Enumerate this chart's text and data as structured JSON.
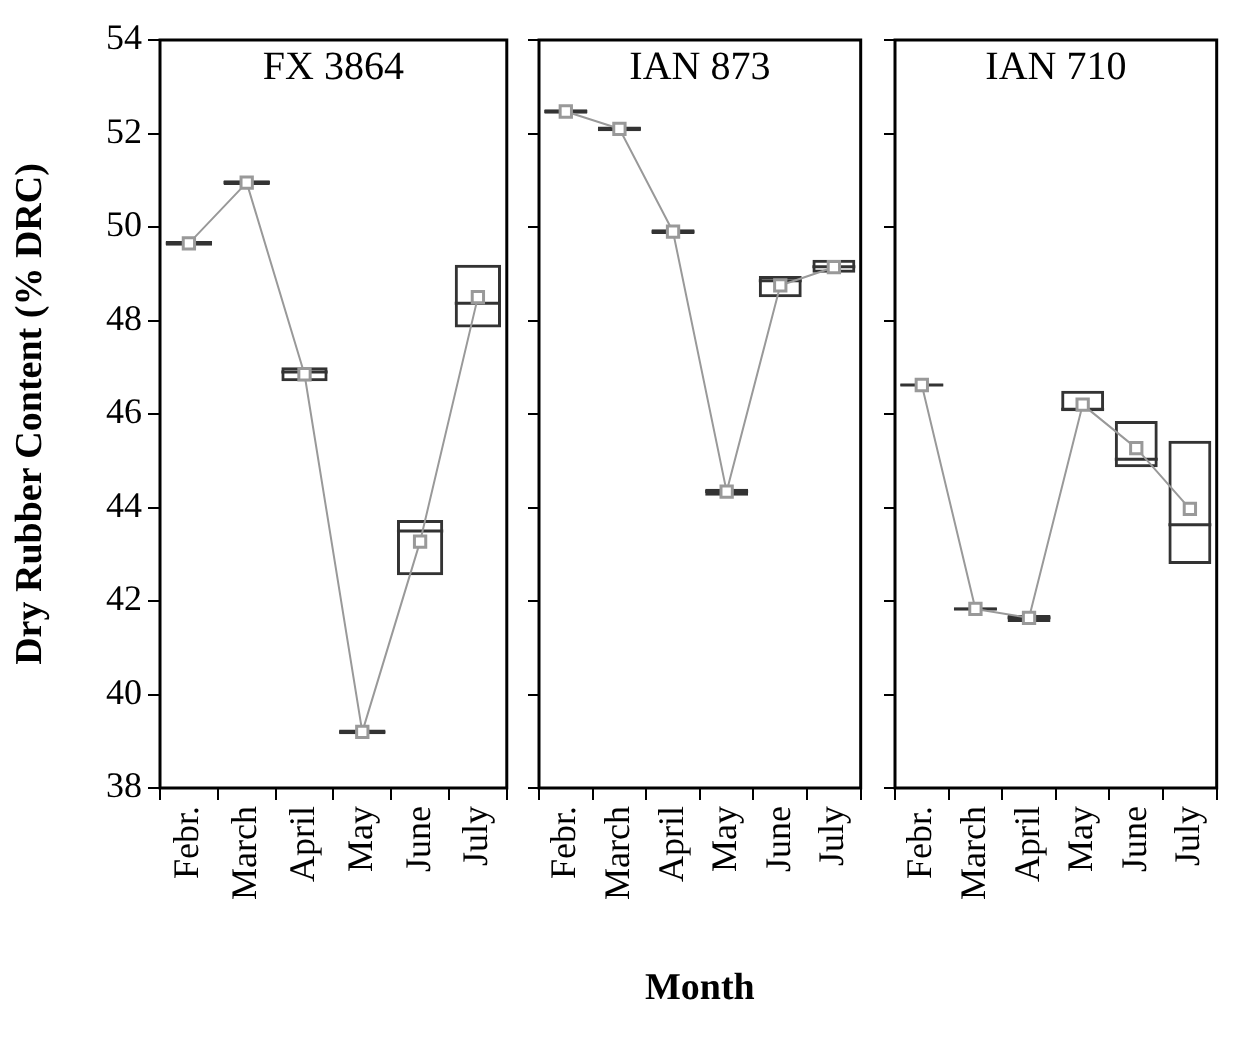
{
  "chart_data": [
    {
      "type": "box",
      "title": "FX 3864",
      "ylabel": "Dry Rubber Content (% DRC)",
      "categories": [
        "Febr.",
        "March",
        "April",
        "May",
        "June",
        "July"
      ],
      "ylim": [
        38,
        54
      ],
      "yticks": [
        38,
        40,
        42,
        44,
        46,
        48,
        50,
        52,
        54
      ],
      "marker": "square",
      "series": [
        {
          "color": "#333333",
          "boxes": [
            {
              "low": 49.6,
              "q1": 49.6,
              "median": 49.65,
              "q3": 49.7,
              "high": 49.7
            },
            {
              "low": 50.9,
              "q1": 50.9,
              "median": 50.95,
              "q3": 51.0,
              "high": 51.0
            },
            {
              "low": 46.7,
              "q1": 46.7,
              "median": 46.9,
              "q3": 47.0,
              "high": 47.0
            },
            {
              "low": 39.15,
              "q1": 39.15,
              "median": 39.2,
              "q3": 39.25,
              "high": 39.25
            },
            {
              "low": 42.55,
              "q1": 42.55,
              "median": 43.5,
              "q3": 43.73,
              "high": 43.73
            },
            {
              "low": 47.85,
              "q1": 47.85,
              "median": 48.37,
              "q3": 49.19,
              "high": 49.19
            }
          ]
        },
        {
          "type": "line",
          "color": "#999999",
          "values": [
            49.65,
            50.95,
            46.85,
            39.2,
            43.27,
            48.5
          ]
        }
      ]
    },
    {
      "type": "box",
      "title": "IAN 873",
      "xlabel": "Month",
      "categories": [
        "Febr.",
        "March",
        "April",
        "May",
        "June",
        "July"
      ],
      "ylim": [
        38,
        54
      ],
      "yticks": [
        38,
        40,
        42,
        44,
        46,
        48,
        50,
        52,
        54
      ],
      "tick_labels": "x",
      "marker": "square",
      "series": [
        {
          "color": "#333333",
          "boxes": [
            {
              "low": 52.42,
              "q1": 52.42,
              "median": 52.47,
              "q3": 52.52,
              "high": 52.52
            },
            {
              "low": 52.05,
              "q1": 52.05,
              "median": 52.1,
              "q3": 52.15,
              "high": 52.15
            },
            {
              "low": 49.85,
              "q1": 49.85,
              "median": 49.9,
              "q3": 49.95,
              "high": 49.95
            },
            {
              "low": 44.25,
              "q1": 44.25,
              "median": 44.34,
              "q3": 44.4,
              "high": 44.4
            },
            {
              "low": 48.5,
              "q1": 48.5,
              "median": 48.85,
              "q3": 48.95,
              "high": 48.95
            },
            {
              "low": 49.02,
              "q1": 49.02,
              "median": 49.15,
              "q3": 49.3,
              "high": 49.3
            }
          ]
        },
        {
          "type": "line",
          "color": "#999999",
          "values": [
            52.47,
            52.1,
            49.9,
            44.34,
            48.75,
            49.14
          ]
        }
      ]
    },
    {
      "type": "box",
      "title": "IAN 710",
      "categories": [
        "Febr.",
        "March",
        "April",
        "May",
        "June",
        "July"
      ],
      "ylim": [
        38,
        54
      ],
      "yticks": [
        38,
        40,
        42,
        44,
        46,
        48,
        50,
        52,
        54
      ],
      "tick_labels": "x",
      "marker": "square",
      "series": [
        {
          "color": "#333333",
          "boxes": [
            {
              "low": 46.6,
              "q1": 46.6,
              "median": 46.62,
              "q3": 46.64,
              "high": 46.64
            },
            {
              "low": 41.8,
              "q1": 41.8,
              "median": 41.83,
              "q3": 41.86,
              "high": 41.86
            },
            {
              "low": 41.55,
              "q1": 41.55,
              "median": 41.64,
              "q3": 41.7,
              "high": 41.7
            },
            {
              "low": 46.06,
              "q1": 46.06,
              "median": 46.1,
              "q3": 46.5,
              "high": 46.5
            },
            {
              "low": 44.86,
              "q1": 44.86,
              "median": 45.03,
              "q3": 45.85,
              "high": 45.85
            },
            {
              "low": 42.79,
              "q1": 42.79,
              "median": 43.63,
              "q3": 45.43,
              "high": 45.43
            }
          ]
        },
        {
          "type": "line",
          "color": "#999999",
          "values": [
            46.62,
            41.83,
            41.64,
            46.2,
            45.27,
            43.97
          ]
        }
      ]
    }
  ]
}
